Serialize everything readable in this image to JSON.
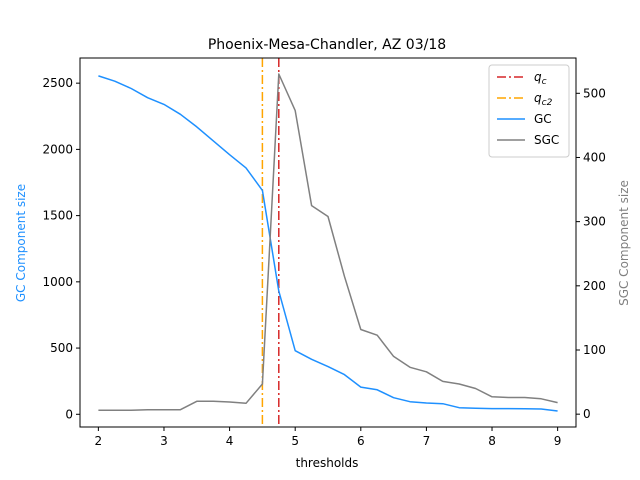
{
  "chart_data": {
    "type": "line",
    "title": "Phoenix-Mesa-Chandler, AZ 03/18",
    "xlabel": "thresholds",
    "ylabel_left": "GC Component size",
    "ylabel_right": "SGC Component size",
    "xlim": [
      1.72,
      9.28
    ],
    "ylim_left": [
      -96,
      2690
    ],
    "ylim_right": [
      -20,
      555
    ],
    "x_ticks": [
      "2",
      "3",
      "4",
      "5",
      "6",
      "7",
      "8",
      "9"
    ],
    "y_left_ticks": [
      "0",
      "500",
      "1000",
      "1500",
      "2000",
      "2500"
    ],
    "y_right_ticks": [
      "0",
      "100",
      "200",
      "300",
      "400",
      "500"
    ],
    "legend_position": "top-right",
    "vlines": [
      {
        "name": "q_c",
        "x": 4.75,
        "color": "#d62728",
        "style": "dashdot"
      },
      {
        "name": "q_c2",
        "x": 4.5,
        "color": "#ffa500",
        "style": "dashdot"
      }
    ],
    "x": [
      2.0,
      2.25,
      2.5,
      2.75,
      3.0,
      3.25,
      3.5,
      3.75,
      4.0,
      4.25,
      4.5,
      4.75,
      5.0,
      5.25,
      5.5,
      5.75,
      6.0,
      6.25,
      6.5,
      6.75,
      7.0,
      7.25,
      7.5,
      7.75,
      8.0,
      8.25,
      8.5,
      8.75,
      9.0
    ],
    "series": [
      {
        "name": "GC",
        "axis": "left",
        "color": "#1e90ff",
        "values": [
          2555,
          2515,
          2460,
          2390,
          2340,
          2265,
          2170,
          2065,
          1960,
          1860,
          1690,
          930,
          480,
          415,
          360,
          300,
          205,
          185,
          125,
          95,
          85,
          80,
          50,
          45,
          43,
          43,
          42,
          40,
          25
        ]
      },
      {
        "name": "SGC",
        "axis": "right",
        "color": "#808080",
        "values": [
          6,
          6,
          6,
          7,
          7,
          7,
          20,
          20,
          19,
          17,
          47,
          530,
          473,
          325,
          308,
          215,
          132,
          123,
          90,
          73,
          66,
          51,
          47,
          40,
          27,
          26,
          26,
          24,
          18
        ]
      }
    ]
  }
}
